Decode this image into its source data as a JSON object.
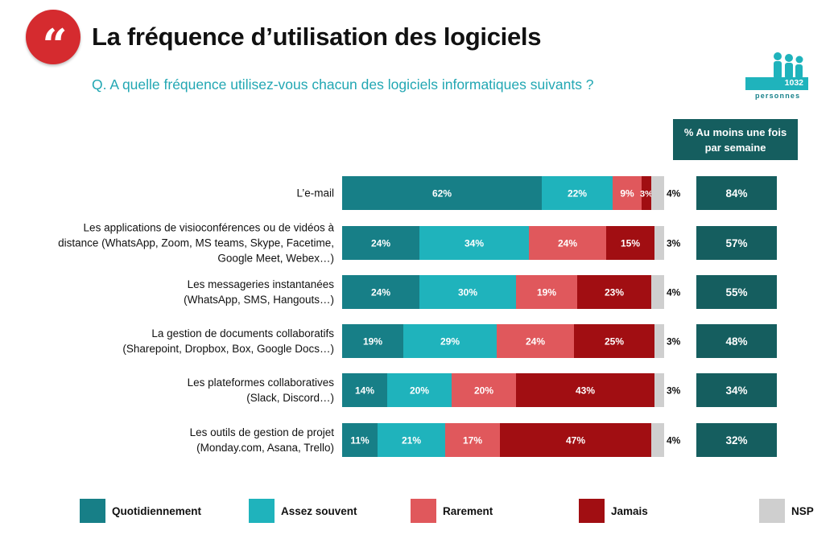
{
  "header": {
    "quote_mark": "“",
    "title": "La fréquence d’utilisation des logiciels",
    "question": "Q. A quelle fréquence utilisez-vous chacun des logiciels informatiques suivants ?",
    "sample_count": "1032",
    "sample_unit": "personnes"
  },
  "summary_header": "% Au moins une fois par semaine",
  "colors": {
    "quotidiennement": "#177f87",
    "assez_souvent": "#1fb3bc",
    "rarement": "#e0585c",
    "jamais": "#a10e12",
    "nsp": "#cfcfcf",
    "summary": "#155e5f",
    "title_accent": "#d52b2f",
    "question": "#22a7b3"
  },
  "chart_data": {
    "type": "bar",
    "orientation": "horizontal",
    "stacked": true,
    "unit": "%",
    "categories": [
      "L’e-mail",
      "Les applications de visioconférences ou de vidéos à distance (WhatsApp, Zoom, MS teams, Skype, Facetime, Google Meet, Webex…)",
      "Les messageries instantanées (WhatsApp, SMS, Hangouts…)",
      "La gestion de documents collaboratifs (Sharepoint, Dropbox, Box, Google Docs…)",
      "Les plateformes collaboratives (Slack, Discord…)",
      "Les outils de gestion de projet (Monday.com, Asana, Trello)"
    ],
    "category_lines": [
      [
        "L’e-mail"
      ],
      [
        "Les applications de visioconférences ou de vidéos à",
        "distance (WhatsApp, Zoom, MS teams, Skype, Facetime,",
        "Google Meet, Webex…)"
      ],
      [
        "Les messageries instantanées",
        "(WhatsApp, SMS, Hangouts…)"
      ],
      [
        "La gestion de documents collaboratifs",
        "(Sharepoint, Dropbox, Box, Google Docs…)"
      ],
      [
        "Les plateformes collaboratives",
        "(Slack, Discord…)"
      ],
      [
        "Les outils de gestion de projet",
        "(Monday.com, Asana, Trello)"
      ]
    ],
    "series": [
      {
        "name": "Quotidiennement",
        "color": "#177f87",
        "values": [
          62,
          24,
          24,
          19,
          14,
          11
        ]
      },
      {
        "name": "Assez souvent",
        "color": "#1fb3bc",
        "values": [
          22,
          34,
          30,
          29,
          20,
          21
        ]
      },
      {
        "name": "Rarement",
        "color": "#e0585c",
        "values": [
          9,
          24,
          19,
          24,
          20,
          17
        ]
      },
      {
        "name": "Jamais",
        "color": "#a10e12",
        "values": [
          3,
          15,
          23,
          25,
          43,
          47
        ]
      },
      {
        "name": "NSP",
        "color": "#cfcfcf",
        "values": [
          4,
          3,
          4,
          3,
          3,
          4
        ]
      }
    ],
    "summary_values": [
      84,
      57,
      55,
      48,
      34,
      32
    ],
    "legend_position": "bottom",
    "xlim": [
      0,
      100
    ],
    "grid": false
  }
}
